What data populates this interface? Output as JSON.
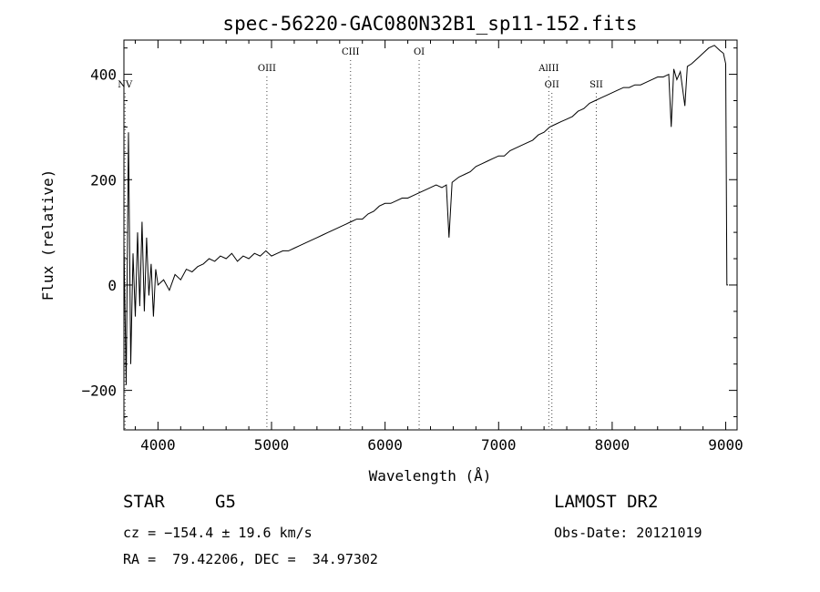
{
  "chart_data": {
    "type": "line",
    "title": "spec-56220-GAC080N32B1_sp11-152.fits",
    "xlabel": "Wavelength (Å)",
    "ylabel": "Flux (relative)",
    "xlim": [
      3700,
      9100
    ],
    "ylim": [
      -275,
      465
    ],
    "x_ticks": [
      4000,
      5000,
      6000,
      7000,
      8000,
      9000
    ],
    "y_ticks": [
      -200,
      0,
      200,
      400
    ],
    "grid": false,
    "series": [
      {
        "x": [
          3700,
          3720,
          3740,
          3760,
          3780,
          3800,
          3820,
          3840,
          3860,
          3880,
          3900,
          3920,
          3940,
          3960,
          3980,
          4000,
          4050,
          4100,
          4150,
          4200,
          4250,
          4300,
          4350,
          4400,
          4450,
          4500,
          4550,
          4600,
          4650,
          4700,
          4750,
          4800,
          4850,
          4900,
          4950,
          5000,
          5050,
          5100,
          5150,
          5200,
          5250,
          5300,
          5350,
          5400,
          5450,
          5500,
          5550,
          5600,
          5650,
          5700,
          5750,
          5800,
          5850,
          5900,
          5950,
          6000,
          6050,
          6100,
          6150,
          6200,
          6250,
          6300,
          6350,
          6400,
          6450,
          6500,
          6540,
          6563,
          6590,
          6650,
          6700,
          6750,
          6800,
          6850,
          6900,
          6950,
          7000,
          7050,
          7100,
          7150,
          7200,
          7250,
          7300,
          7350,
          7400,
          7450,
          7500,
          7550,
          7600,
          7650,
          7700,
          7750,
          7800,
          7850,
          7900,
          7950,
          8000,
          8050,
          8100,
          8150,
          8200,
          8250,
          8300,
          8350,
          8400,
          8450,
          8498,
          8520,
          8542,
          8570,
          8600,
          8640,
          8662,
          8700,
          8750,
          8800,
          8850,
          8900,
          8950,
          8980,
          9000,
          9010,
          9020
        ],
        "y": [
          80,
          -190,
          290,
          -150,
          60,
          -60,
          100,
          -40,
          120,
          -50,
          90,
          -20,
          40,
          -60,
          30,
          0,
          10,
          -10,
          20,
          10,
          30,
          25,
          35,
          40,
          50,
          45,
          55,
          50,
          60,
          45,
          55,
          50,
          60,
          55,
          65,
          55,
          60,
          65,
          65,
          70,
          75,
          80,
          85,
          90,
          95,
          100,
          105,
          110,
          115,
          120,
          125,
          125,
          135,
          140,
          150,
          155,
          155,
          160,
          165,
          165,
          170,
          175,
          180,
          185,
          190,
          185,
          190,
          90,
          195,
          205,
          210,
          215,
          225,
          230,
          235,
          240,
          245,
          245,
          255,
          260,
          265,
          270,
          275,
          285,
          290,
          300,
          305,
          310,
          315,
          320,
          330,
          335,
          345,
          350,
          355,
          360,
          365,
          370,
          375,
          375,
          380,
          380,
          385,
          390,
          395,
          395,
          400,
          300,
          410,
          390,
          405,
          340,
          415,
          420,
          430,
          440,
          450,
          455,
          445,
          440,
          420,
          0,
          0
        ]
      }
    ],
    "spectral_lines": [
      {
        "label": "NV",
        "x": 3710,
        "row": 2
      },
      {
        "label": "OIII",
        "x": 4959,
        "row": 1
      },
      {
        "label": "CIII",
        "x": 5696,
        "row": 0
      },
      {
        "label": "OI",
        "x": 6300,
        "row": 0
      },
      {
        "label": "AlIII",
        "x": 7442,
        "row": 1
      },
      {
        "label": "OII",
        "x": 7469,
        "row": 2
      },
      {
        "label": "SII",
        "x": 7860,
        "row": 2
      }
    ]
  },
  "info": {
    "obj_class": "STAR",
    "subclass": "G5",
    "survey": "LAMOST DR2",
    "cz": "cz = −154.4 ± 19.6 km/s",
    "obs_date": "Obs-Date: 20121019",
    "radec": "RA =  79.42206, DEC =  34.97302"
  }
}
